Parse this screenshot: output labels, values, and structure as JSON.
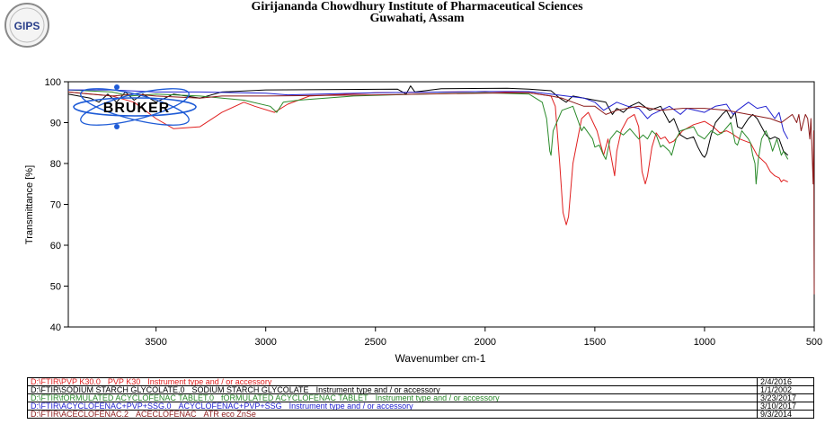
{
  "header": {
    "line1": "Girijananda Chowdhury Institute of Pharmaceutical Sciences",
    "line2": "Guwahati, Assam",
    "logo_text": "GIPS"
  },
  "brand": {
    "name": "BRUKER",
    "color": "#000000",
    "orbit_color": "#1e5bd6"
  },
  "chart_data": {
    "type": "line",
    "title": "",
    "xlabel": "Wavenumber cm-1",
    "ylabel": "Transmittance [%]",
    "xlim": [
      3900,
      500
    ],
    "ylim": [
      40,
      100
    ],
    "x_reversed": true,
    "x_ticks": [
      3500,
      3000,
      2500,
      2000,
      1500,
      1000,
      500
    ],
    "y_ticks": [
      40,
      50,
      60,
      70,
      80,
      90,
      100
    ],
    "grid": false,
    "series": [
      {
        "name": "PVP K30",
        "color": "#e02020",
        "points": [
          [
            3900,
            97.5
          ],
          [
            3700,
            96.5
          ],
          [
            3600,
            95
          ],
          [
            3500,
            91
          ],
          [
            3420,
            88.5
          ],
          [
            3300,
            89
          ],
          [
            3200,
            92.5
          ],
          [
            3100,
            95
          ],
          [
            3050,
            94
          ],
          [
            2960,
            92.5
          ],
          [
            2900,
            94.5
          ],
          [
            2800,
            96.5
          ],
          [
            2500,
            97.3
          ],
          [
            2000,
            97.6
          ],
          [
            1800,
            97.3
          ],
          [
            1700,
            96.5
          ],
          [
            1680,
            94
          ],
          [
            1660,
            80
          ],
          [
            1645,
            68
          ],
          [
            1630,
            65
          ],
          [
            1620,
            67
          ],
          [
            1600,
            80
          ],
          [
            1560,
            91
          ],
          [
            1530,
            92.5
          ],
          [
            1490,
            88
          ],
          [
            1460,
            82
          ],
          [
            1440,
            86
          ],
          [
            1420,
            80
          ],
          [
            1410,
            77
          ],
          [
            1400,
            83
          ],
          [
            1380,
            88
          ],
          [
            1350,
            91
          ],
          [
            1320,
            92
          ],
          [
            1300,
            89
          ],
          [
            1285,
            78
          ],
          [
            1270,
            75
          ],
          [
            1260,
            77
          ],
          [
            1240,
            84
          ],
          [
            1220,
            87.5
          ],
          [
            1200,
            86
          ],
          [
            1180,
            86.5
          ],
          [
            1160,
            85
          ],
          [
            1140,
            85.5
          ],
          [
            1100,
            88
          ],
          [
            1050,
            89.5
          ],
          [
            1000,
            90.3
          ],
          [
            960,
            89
          ],
          [
            930,
            87.5
          ],
          [
            900,
            88
          ],
          [
            880,
            87.5
          ],
          [
            840,
            86
          ],
          [
            790,
            85
          ],
          [
            760,
            82
          ],
          [
            740,
            81
          ],
          [
            720,
            80
          ],
          [
            700,
            78
          ],
          [
            680,
            77
          ],
          [
            660,
            76.5
          ],
          [
            650,
            75.5
          ],
          [
            640,
            76
          ],
          [
            620,
            75.5
          ]
        ]
      },
      {
        "name": "SODIUM  STARCH GLYCOLATE",
        "color": "#000000",
        "points": [
          [
            3900,
            97
          ],
          [
            3800,
            96
          ],
          [
            3760,
            95
          ],
          [
            3720,
            97
          ],
          [
            3680,
            95
          ],
          [
            3640,
            97.5
          ],
          [
            3600,
            95.5
          ],
          [
            3560,
            97
          ],
          [
            3500,
            95
          ],
          [
            3420,
            97
          ],
          [
            3300,
            96
          ],
          [
            3200,
            97.5
          ],
          [
            3000,
            98
          ],
          [
            2400,
            98.2
          ],
          [
            2360,
            97
          ],
          [
            2340,
            99
          ],
          [
            2320,
            97.5
          ],
          [
            2200,
            98.3
          ],
          [
            1900,
            98.4
          ],
          [
            1800,
            98.2
          ],
          [
            1700,
            97.8
          ],
          [
            1660,
            96
          ],
          [
            1630,
            95
          ],
          [
            1600,
            96.5
          ],
          [
            1550,
            96
          ],
          [
            1500,
            95.5
          ],
          [
            1450,
            95
          ],
          [
            1420,
            92
          ],
          [
            1400,
            93.5
          ],
          [
            1370,
            92.5
          ],
          [
            1340,
            94
          ],
          [
            1300,
            95
          ],
          [
            1250,
            93
          ],
          [
            1200,
            94
          ],
          [
            1160,
            90
          ],
          [
            1140,
            91
          ],
          [
            1110,
            87
          ],
          [
            1080,
            86
          ],
          [
            1050,
            86.5
          ],
          [
            1030,
            84
          ],
          [
            1010,
            82
          ],
          [
            1000,
            81.5
          ],
          [
            990,
            82.5
          ],
          [
            970,
            87
          ],
          [
            950,
            90
          ],
          [
            920,
            92
          ],
          [
            900,
            93
          ],
          [
            880,
            91
          ],
          [
            860,
            92.5
          ],
          [
            850,
            89
          ],
          [
            830,
            88.5
          ],
          [
            800,
            91
          ],
          [
            780,
            92
          ],
          [
            760,
            91
          ],
          [
            740,
            89
          ],
          [
            720,
            87
          ],
          [
            700,
            86
          ],
          [
            680,
            86.5
          ],
          [
            660,
            86
          ],
          [
            640,
            83
          ],
          [
            620,
            82
          ]
        ]
      },
      {
        "name": "fORMULATED ACYCLOFENAC TABLET",
        "color": "#2a8a2a",
        "points": [
          [
            3900,
            98
          ],
          [
            3700,
            97.5
          ],
          [
            3620,
            96.5
          ],
          [
            3500,
            97
          ],
          [
            3300,
            96.5
          ],
          [
            3100,
            95.5
          ],
          [
            2980,
            94
          ],
          [
            2950,
            92.5
          ],
          [
            2920,
            95
          ],
          [
            2850,
            95.5
          ],
          [
            2600,
            96.5
          ],
          [
            2300,
            97
          ],
          [
            2000,
            97.3
          ],
          [
            1800,
            97
          ],
          [
            1740,
            95
          ],
          [
            1720,
            91
          ],
          [
            1705,
            83
          ],
          [
            1700,
            82
          ],
          [
            1690,
            88
          ],
          [
            1650,
            93
          ],
          [
            1600,
            94
          ],
          [
            1580,
            91
          ],
          [
            1560,
            88
          ],
          [
            1550,
            89
          ],
          [
            1510,
            86
          ],
          [
            1500,
            84
          ],
          [
            1480,
            84.5
          ],
          [
            1460,
            82
          ],
          [
            1450,
            81
          ],
          [
            1430,
            86
          ],
          [
            1400,
            88
          ],
          [
            1370,
            87
          ],
          [
            1340,
            88.5
          ],
          [
            1300,
            86
          ],
          [
            1280,
            87
          ],
          [
            1260,
            86
          ],
          [
            1240,
            88
          ],
          [
            1220,
            87
          ],
          [
            1200,
            84
          ],
          [
            1190,
            84.5
          ],
          [
            1160,
            83
          ],
          [
            1150,
            82
          ],
          [
            1130,
            86
          ],
          [
            1110,
            88
          ],
          [
            1080,
            88.5
          ],
          [
            1050,
            89
          ],
          [
            1030,
            87
          ],
          [
            1000,
            86
          ],
          [
            970,
            88
          ],
          [
            940,
            87
          ],
          [
            920,
            87.5
          ],
          [
            880,
            90
          ],
          [
            860,
            85
          ],
          [
            850,
            84.5
          ],
          [
            830,
            88
          ],
          [
            800,
            86
          ],
          [
            790,
            85
          ],
          [
            780,
            82
          ],
          [
            770,
            80
          ],
          [
            765,
            75
          ],
          [
            755,
            81
          ],
          [
            740,
            86
          ],
          [
            720,
            88
          ],
          [
            700,
            85
          ],
          [
            690,
            83
          ],
          [
            670,
            86
          ],
          [
            650,
            82
          ],
          [
            640,
            83
          ],
          [
            620,
            81
          ]
        ]
      },
      {
        "name": "ACYCLOFENAC+PVP+SSG",
        "color": "#2020d0",
        "points": [
          [
            3900,
            98
          ],
          [
            3700,
            98
          ],
          [
            3500,
            97.5
          ],
          [
            3300,
            97.5
          ],
          [
            3000,
            97.2
          ],
          [
            2900,
            96.8
          ],
          [
            2500,
            97.3
          ],
          [
            2000,
            97.6
          ],
          [
            1800,
            97.6
          ],
          [
            1700,
            97
          ],
          [
            1600,
            96.3
          ],
          [
            1550,
            96
          ],
          [
            1500,
            95
          ],
          [
            1460,
            93
          ],
          [
            1400,
            95
          ],
          [
            1350,
            94
          ],
          [
            1300,
            93.5
          ],
          [
            1260,
            91
          ],
          [
            1240,
            92
          ],
          [
            1200,
            93
          ],
          [
            1160,
            94
          ],
          [
            1110,
            92
          ],
          [
            1080,
            93.5
          ],
          [
            1000,
            92.5
          ],
          [
            950,
            94
          ],
          [
            900,
            94.5
          ],
          [
            870,
            92
          ],
          [
            850,
            93
          ],
          [
            800,
            95
          ],
          [
            760,
            93.5
          ],
          [
            720,
            94
          ],
          [
            680,
            91
          ],
          [
            660,
            92.5
          ],
          [
            640,
            88
          ],
          [
            620,
            86
          ]
        ]
      },
      {
        "name": "ACECLOFENAC",
        "color": "#8b1a1a",
        "points": [
          [
            3900,
            97.5
          ],
          [
            3800,
            97
          ],
          [
            3700,
            96.5
          ],
          [
            3600,
            97
          ],
          [
            3500,
            96.5
          ],
          [
            3300,
            96
          ],
          [
            3200,
            96.5
          ],
          [
            3000,
            96.5
          ],
          [
            2500,
            96.8
          ],
          [
            2000,
            97.2
          ],
          [
            1800,
            97.3
          ],
          [
            1700,
            96.5
          ],
          [
            1650,
            96
          ],
          [
            1600,
            95
          ],
          [
            1550,
            94
          ],
          [
            1500,
            94
          ],
          [
            1450,
            92
          ],
          [
            1400,
            93
          ],
          [
            1300,
            94
          ],
          [
            1200,
            93
          ],
          [
            1100,
            93.5
          ],
          [
            1000,
            93.5
          ],
          [
            900,
            93
          ],
          [
            800,
            92
          ],
          [
            700,
            91
          ],
          [
            650,
            90
          ],
          [
            600,
            92
          ],
          [
            580,
            90
          ],
          [
            570,
            92
          ],
          [
            560,
            88
          ],
          [
            540,
            92
          ],
          [
            530,
            91
          ],
          [
            520,
            86
          ],
          [
            515,
            91
          ],
          [
            510,
            83
          ],
          [
            505,
            75
          ],
          [
            502,
            88
          ],
          [
            501,
            60
          ],
          [
            500,
            48
          ]
        ]
      }
    ]
  },
  "legend_rows": [
    {
      "path": "D:\\FTIR\\PVP K30.0",
      "sample": "PVP K30",
      "info": "Instrument type and / or accessory",
      "date": "2/4/2016",
      "color": "#e02020"
    },
    {
      "path": "D:\\FTIR\\SODIUM  STARCH GLYCOLATE.0",
      "sample": "SODIUM  STARCH GLYCOLATE",
      "info": "Instrument type and / or accessory",
      "date": "1/1/2002",
      "color": "#000000"
    },
    {
      "path": "D:\\FTIR\\fORMULATED ACYCLOFENAC TABLET.0",
      "sample": "fORMULATED ACYCLOFENAC TABLET",
      "info": "Instrument type and / or accessory",
      "date": "3/23/2017",
      "color": "#2a8a2a"
    },
    {
      "path": "D:\\FTIR\\ACYCLOFENAC+PVP+SSG.0",
      "sample": "ACYCLOFENAC+PVP+SSG",
      "info": "Instrument type and / or accessory",
      "date": "3/10/2017",
      "color": "#2020d0"
    },
    {
      "path": "D:\\FTIR\\ACECLOFENAC.2",
      "sample": "ACECLOFENAC",
      "info": "ATR eco ZnSe",
      "date": "9/3/2014",
      "color": "#8b1a1a"
    }
  ]
}
